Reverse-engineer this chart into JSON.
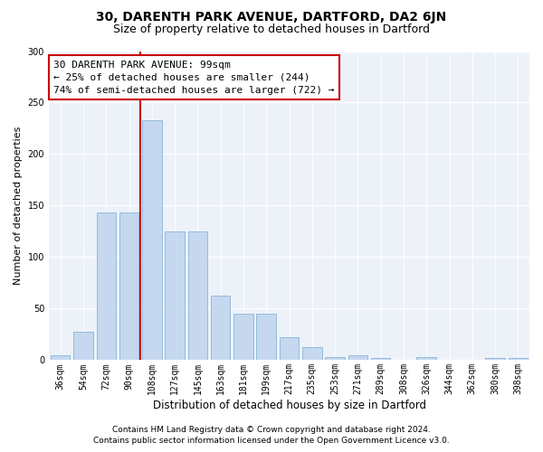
{
  "title": "30, DARENTH PARK AVENUE, DARTFORD, DA2 6JN",
  "subtitle": "Size of property relative to detached houses in Dartford",
  "xlabel": "Distribution of detached houses by size in Dartford",
  "ylabel": "Number of detached properties",
  "categories": [
    "36sqm",
    "54sqm",
    "72sqm",
    "90sqm",
    "108sqm",
    "127sqm",
    "145sqm",
    "163sqm",
    "181sqm",
    "199sqm",
    "217sqm",
    "235sqm",
    "253sqm",
    "271sqm",
    "289sqm",
    "308sqm",
    "326sqm",
    "344sqm",
    "362sqm",
    "380sqm",
    "398sqm"
  ],
  "values": [
    5,
    28,
    143,
    143,
    233,
    125,
    125,
    63,
    45,
    45,
    22,
    13,
    3,
    5,
    2,
    0,
    3,
    0,
    0,
    2,
    2
  ],
  "bar_color": "#c5d8f0",
  "bar_edgecolor": "#8ab4d8",
  "vline_color": "#cc0000",
  "vline_index": 3.5,
  "annotation_text": "30 DARENTH PARK AVENUE: 99sqm\n← 25% of detached houses are smaller (244)\n74% of semi-detached houses are larger (722) →",
  "annotation_box_edgecolor": "#cc0000",
  "ylim": [
    0,
    300
  ],
  "yticks": [
    0,
    50,
    100,
    150,
    200,
    250,
    300
  ],
  "footer_line1": "Contains HM Land Registry data © Crown copyright and database right 2024.",
  "footer_line2": "Contains public sector information licensed under the Open Government Licence v3.0.",
  "background_color": "#edf2f9",
  "title_fontsize": 10,
  "subtitle_fontsize": 9,
  "xlabel_fontsize": 8.5,
  "ylabel_fontsize": 8,
  "tick_fontsize": 7,
  "annotation_fontsize": 8,
  "footer_fontsize": 6.5
}
